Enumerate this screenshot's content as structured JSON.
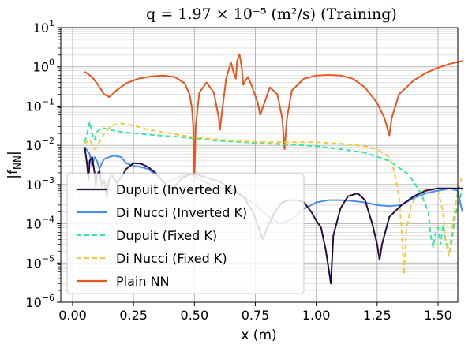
{
  "chart_data": {
    "type": "line",
    "title": "q = 1.97 × 10⁻⁵ (m²/s) (Training)",
    "xlabel": "x (m)",
    "ylabel": "|f_NN|",
    "xlim": [
      0.0,
      1.6
    ],
    "ylim": [
      1e-06,
      10
    ],
    "yscale": "log",
    "grid": true,
    "legend_position": "lower-left",
    "x_ticks": [
      "0.00",
      "0.25",
      "0.50",
      "0.75",
      "1.00",
      "1.25",
      "1.50"
    ],
    "x_tick_values": [
      0.0,
      0.25,
      0.5,
      0.75,
      1.0,
      1.25,
      1.5
    ],
    "y_tick_labels": [
      {
        "base": "10",
        "exp": "1",
        "value": 10
      },
      {
        "base": "10",
        "exp": "0",
        "value": 1
      },
      {
        "base": "10",
        "exp": "−1",
        "value": 0.1
      },
      {
        "base": "10",
        "exp": "−2",
        "value": 0.01
      },
      {
        "base": "10",
        "exp": "−3",
        "value": 0.001
      },
      {
        "base": "10",
        "exp": "−4",
        "value": 0.0001
      },
      {
        "base": "10",
        "exp": "−5",
        "value": 1e-05
      },
      {
        "base": "10",
        "exp": "−6",
        "value": 1e-06
      }
    ],
    "series": [
      {
        "name": "Plain NN",
        "color": "#e4571e",
        "dash": "solid",
        "points": [
          [
            0.05,
            0.75
          ],
          [
            0.08,
            0.55
          ],
          [
            0.1,
            0.38
          ],
          [
            0.13,
            0.2
          ],
          [
            0.15,
            0.17
          ],
          [
            0.18,
            0.25
          ],
          [
            0.22,
            0.38
          ],
          [
            0.27,
            0.5
          ],
          [
            0.32,
            0.57
          ],
          [
            0.37,
            0.6
          ],
          [
            0.42,
            0.55
          ],
          [
            0.46,
            0.38
          ],
          [
            0.48,
            0.2
          ],
          [
            0.49,
            0.09
          ],
          [
            0.495,
            0.03
          ],
          [
            0.5,
            0.0012
          ],
          [
            0.505,
            0.03
          ],
          [
            0.52,
            0.22
          ],
          [
            0.55,
            0.4
          ],
          [
            0.58,
            0.22
          ],
          [
            0.6,
            0.05
          ],
          [
            0.605,
            0.025
          ],
          [
            0.61,
            0.05
          ],
          [
            0.63,
            0.5
          ],
          [
            0.65,
            1.3
          ],
          [
            0.66,
            0.75
          ],
          [
            0.67,
            0.5
          ],
          [
            0.675,
            1.4
          ],
          [
            0.685,
            2.1
          ],
          [
            0.695,
            0.9
          ],
          [
            0.7,
            0.35
          ],
          [
            0.71,
            0.45
          ],
          [
            0.72,
            0.55
          ],
          [
            0.735,
            0.33
          ],
          [
            0.76,
            0.12
          ],
          [
            0.77,
            0.06
          ],
          [
            0.78,
            0.09
          ],
          [
            0.81,
            0.3
          ],
          [
            0.84,
            0.2
          ],
          [
            0.86,
            0.05
          ],
          [
            0.87,
            0.008
          ],
          [
            0.88,
            0.05
          ],
          [
            0.9,
            0.25
          ],
          [
            0.95,
            0.5
          ],
          [
            1.0,
            0.6
          ],
          [
            1.05,
            0.62
          ],
          [
            1.1,
            0.6
          ],
          [
            1.15,
            0.5
          ],
          [
            1.2,
            0.3
          ],
          [
            1.25,
            0.12
          ],
          [
            1.28,
            0.05
          ],
          [
            1.29,
            0.03
          ],
          [
            1.3,
            0.018
          ],
          [
            1.31,
            0.05
          ],
          [
            1.34,
            0.2
          ],
          [
            1.4,
            0.45
          ],
          [
            1.45,
            0.7
          ],
          [
            1.5,
            0.95
          ],
          [
            1.55,
            1.2
          ],
          [
            1.6,
            1.4
          ]
        ]
      },
      {
        "name": "Dupuit (Fixed K)",
        "color": "#33e8a0",
        "dash": "6,4",
        "points": [
          [
            0.05,
            0.012
          ],
          [
            0.06,
            0.02
          ],
          [
            0.07,
            0.04
          ],
          [
            0.08,
            0.02
          ],
          [
            0.09,
            0.014
          ],
          [
            0.1,
            0.022
          ],
          [
            0.12,
            0.028
          ],
          [
            0.15,
            0.025
          ],
          [
            0.2,
            0.022
          ],
          [
            0.3,
            0.019
          ],
          [
            0.4,
            0.017
          ],
          [
            0.5,
            0.015
          ],
          [
            0.6,
            0.013
          ],
          [
            0.7,
            0.012
          ],
          [
            0.8,
            0.011
          ],
          [
            0.9,
            0.0105
          ],
          [
            1.0,
            0.0095
          ],
          [
            1.1,
            0.008
          ],
          [
            1.2,
            0.0065
          ],
          [
            1.3,
            0.004
          ],
          [
            1.38,
            0.0018
          ],
          [
            1.43,
            0.0006
          ],
          [
            1.46,
            0.0002
          ],
          [
            1.47,
            5e-05
          ],
          [
            1.48,
            2.5e-05
          ],
          [
            1.49,
            6e-05
          ],
          [
            1.5,
            8e-05
          ],
          [
            1.51,
            3e-05
          ],
          [
            1.52,
            9e-05
          ],
          [
            1.535,
            3e-05
          ],
          [
            1.55,
            2e-05
          ],
          [
            1.57,
            0.00015
          ],
          [
            1.6,
            0.0008
          ]
        ]
      },
      {
        "name": "Di Nucci (Fixed K)",
        "color": "#f0ca3c",
        "dash": "6,4",
        "points": [
          [
            0.05,
            0.011
          ],
          [
            0.07,
            0.014
          ],
          [
            0.09,
            0.008
          ],
          [
            0.11,
            0.012
          ],
          [
            0.13,
            0.02
          ],
          [
            0.16,
            0.032
          ],
          [
            0.2,
            0.036
          ],
          [
            0.25,
            0.032
          ],
          [
            0.3,
            0.026
          ],
          [
            0.4,
            0.02
          ],
          [
            0.5,
            0.016
          ],
          [
            0.6,
            0.014
          ],
          [
            0.7,
            0.0125
          ],
          [
            0.8,
            0.012
          ],
          [
            0.9,
            0.012
          ],
          [
            1.0,
            0.012
          ],
          [
            1.1,
            0.011
          ],
          [
            1.2,
            0.0095
          ],
          [
            1.25,
            0.008
          ],
          [
            1.28,
            0.006
          ],
          [
            1.3,
            0.005
          ],
          [
            1.32,
            0.0022
          ],
          [
            1.34,
            0.0005
          ],
          [
            1.35,
            7e-05
          ],
          [
            1.36,
            5e-06
          ],
          [
            1.37,
            7e-05
          ],
          [
            1.39,
            0.0003
          ],
          [
            1.42,
            0.0006
          ],
          [
            1.46,
            0.0008
          ],
          [
            1.5,
            0.0007
          ],
          [
            1.52,
            0.0002
          ],
          [
            1.53,
            4e-05
          ],
          [
            1.545,
            1.5e-05
          ],
          [
            1.56,
            0.0001
          ],
          [
            1.58,
            0.0006
          ],
          [
            1.6,
            0.0018
          ]
        ]
      },
      {
        "name": "Di Nucci (Inverted K)",
        "color": "#4a8ee8",
        "dash": "solid",
        "points": [
          [
            0.05,
            0.009
          ],
          [
            0.07,
            0.006
          ],
          [
            0.08,
            0.003
          ],
          [
            0.09,
            0.005
          ],
          [
            0.1,
            0.004
          ],
          [
            0.11,
            0.0025
          ],
          [
            0.12,
            0.0035
          ],
          [
            0.13,
            0.0045
          ],
          [
            0.15,
            0.005
          ],
          [
            0.17,
            0.0055
          ],
          [
            0.2,
            0.005
          ],
          [
            0.22,
            0.0035
          ],
          [
            0.25,
            0.003
          ],
          [
            0.28,
            0.0028
          ],
          [
            0.31,
            0.0025
          ],
          [
            0.34,
            0.0018
          ],
          [
            0.37,
            0.0012
          ],
          [
            0.4,
            0.0012
          ],
          [
            0.43,
            0.0015
          ],
          [
            0.46,
            0.0018
          ],
          [
            0.49,
            0.0018
          ],
          [
            0.51,
            0.0015
          ],
          [
            0.55,
            0.0011
          ],
          [
            0.6,
            0.0009
          ],
          [
            0.65,
            0.0007
          ],
          [
            0.7,
            0.0005
          ],
          [
            0.75,
            0.0003
          ],
          [
            0.8,
            0.00016
          ],
          [
            0.85,
            0.0001
          ],
          [
            0.9,
            0.00013
          ],
          [
            0.95,
            0.00024
          ],
          [
            1.0,
            0.00035
          ],
          [
            1.05,
            0.0004
          ],
          [
            1.1,
            0.0004
          ],
          [
            1.15,
            0.00038
          ],
          [
            1.2,
            0.00035
          ],
          [
            1.25,
            0.0003
          ],
          [
            1.3,
            0.00028
          ],
          [
            1.35,
            0.0003
          ],
          [
            1.4,
            0.00045
          ],
          [
            1.45,
            0.0006
          ],
          [
            1.5,
            0.0007
          ],
          [
            1.55,
            0.0008
          ],
          [
            1.58,
            0.0007
          ],
          [
            1.6,
            0.0002
          ]
        ]
      },
      {
        "name": "Dupuit (Inverted K)",
        "color": "#2a0d3f",
        "dash": "solid",
        "points": [
          [
            0.05,
            0.009
          ],
          [
            0.06,
            0.003
          ],
          [
            0.065,
            0.0013
          ],
          [
            0.07,
            0.004
          ],
          [
            0.08,
            0.005
          ],
          [
            0.09,
            0.002
          ],
          [
            0.095,
            0.0009
          ],
          [
            0.1,
            0.0018
          ],
          [
            0.11,
            0.0022
          ],
          [
            0.12,
            0.0009
          ],
          [
            0.13,
            0.0013
          ],
          [
            0.14,
            0.0005
          ],
          [
            0.15,
            0.0014
          ],
          [
            0.16,
            0.0018
          ],
          [
            0.18,
            0.0011
          ],
          [
            0.2,
            0.0015
          ],
          [
            0.22,
            0.0025
          ],
          [
            0.25,
            0.0035
          ],
          [
            0.28,
            0.0034
          ],
          [
            0.31,
            0.0028
          ],
          [
            0.34,
            0.002
          ],
          [
            0.37,
            0.0012
          ],
          [
            0.4,
            0.0008
          ],
          [
            0.42,
            0.0009
          ],
          [
            0.45,
            0.0015
          ],
          [
            0.48,
            0.0018
          ],
          [
            0.51,
            0.0018
          ],
          [
            0.55,
            0.0015
          ],
          [
            0.6,
            0.0012
          ],
          [
            0.65,
            0.0008
          ],
          [
            0.7,
            0.0005
          ],
          [
            0.74,
            0.0002
          ],
          [
            0.76,
            9e-05
          ],
          [
            0.78,
            4e-05
          ],
          [
            0.8,
            8e-05
          ],
          [
            0.83,
            0.0002
          ],
          [
            0.86,
            0.00035
          ],
          [
            0.89,
            0.0004
          ],
          [
            0.92,
            0.0004
          ],
          [
            0.95,
            0.00035
          ],
          [
            0.98,
            0.0002
          ],
          [
            1.0,
            0.00012
          ],
          [
            1.02,
            8e-05
          ],
          [
            1.04,
            2e-05
          ],
          [
            1.06,
            3e-06
          ],
          [
            1.07,
            5e-05
          ],
          [
            1.1,
            0.00025
          ],
          [
            1.13,
            0.0005
          ],
          [
            1.17,
            0.0006
          ],
          [
            1.2,
            0.0004
          ],
          [
            1.23,
            0.0001
          ],
          [
            1.25,
            3e-05
          ],
          [
            1.26,
            1.2e-05
          ],
          [
            1.27,
            3e-05
          ],
          [
            1.3,
            0.00015
          ],
          [
            1.35,
            0.0003
          ],
          [
            1.4,
            0.0005
          ],
          [
            1.45,
            0.0007
          ],
          [
            1.5,
            0.0008
          ],
          [
            1.55,
            0.0008
          ],
          [
            1.6,
            0.0008
          ]
        ]
      }
    ],
    "legend": [
      {
        "label": "Dupuit (Inverted K)",
        "color": "#2a0d3f",
        "dash": "solid"
      },
      {
        "label": "Di Nucci (Inverted K)",
        "color": "#4a8ee8",
        "dash": "solid"
      },
      {
        "label": "Dupuit (Fixed K)",
        "color": "#33e8a0",
        "dash": "6,4"
      },
      {
        "label": "Di Nucci (Fixed K)",
        "color": "#f0ca3c",
        "dash": "6,4"
      },
      {
        "label": "Plain NN",
        "color": "#e4571e",
        "dash": "solid"
      }
    ]
  }
}
